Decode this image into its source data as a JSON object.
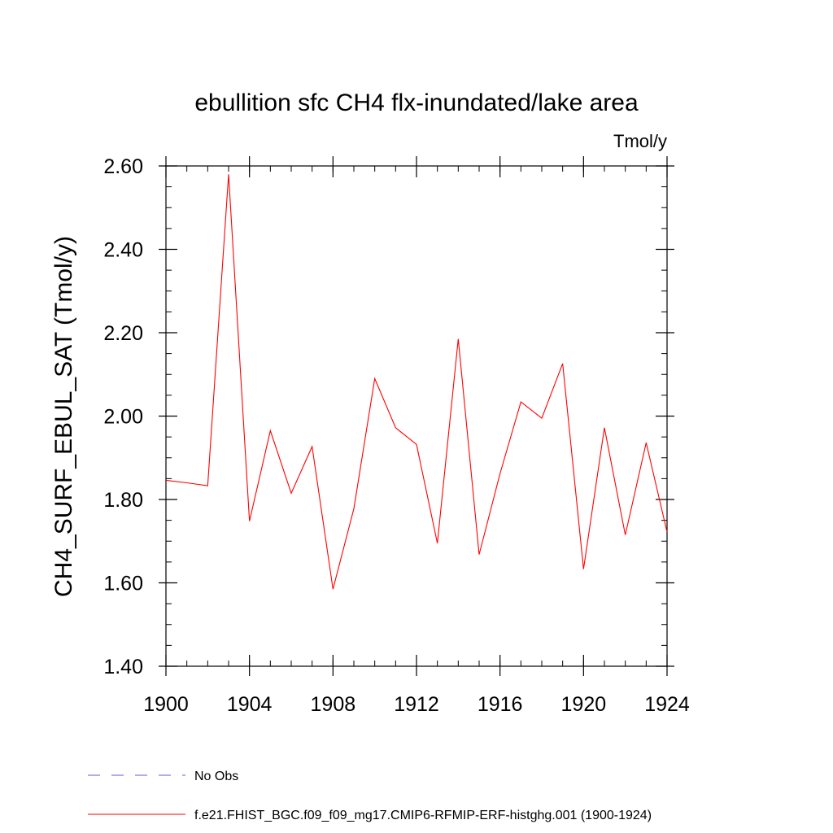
{
  "chart_data": {
    "type": "line",
    "title": "ebullition sfc CH4 flx-inundated/lake area",
    "units_label": "Tmol/y",
    "ylabel": "CH4_SURF_EBUL_SAT  (Tmol/y)",
    "xlabel": "",
    "xlim": [
      1900,
      1924
    ],
    "ylim": [
      1.4,
      2.6
    ],
    "xticks": [
      1900,
      1904,
      1908,
      1912,
      1916,
      1920,
      1924
    ],
    "xtick_labels": [
      "1900",
      "1904",
      "1908",
      "1912",
      "1916",
      "1920",
      "1924"
    ],
    "yticks": [
      1.4,
      1.6,
      1.8,
      2.0,
      2.2,
      2.4,
      2.6
    ],
    "ytick_labels": [
      "1.40",
      "1.60",
      "1.80",
      "2.00",
      "2.20",
      "2.40",
      "2.60"
    ],
    "grid": false,
    "series": [
      {
        "name": "f.e21.FHIST_BGC.f09_f09_mg17.CMIP6-RFMIP-ERF-histghg.001 (1900-1924)",
        "color": "#ff0000",
        "style": "solid",
        "x": [
          1900,
          1901,
          1902,
          1903,
          1904,
          1905,
          1906,
          1907,
          1908,
          1909,
          1910,
          1911,
          1912,
          1913,
          1914,
          1915,
          1916,
          1917,
          1918,
          1919,
          1920,
          1921,
          1922,
          1923,
          1924
        ],
        "values": [
          1.846,
          1.84,
          1.833,
          2.58,
          1.748,
          1.965,
          1.815,
          1.927,
          1.585,
          1.778,
          2.09,
          1.972,
          1.932,
          1.695,
          2.185,
          1.668,
          1.862,
          2.034,
          1.995,
          2.126,
          1.633,
          1.972,
          1.715,
          1.936,
          1.722
        ]
      }
    ],
    "legend": [
      {
        "label": "No Obs",
        "color": "#6a5acd",
        "style": "dashed"
      },
      {
        "label": "f.e21.FHIST_BGC.f09_f09_mg17.CMIP6-RFMIP-ERF-histghg.001 (1900-1924)",
        "color": "#ff0000",
        "style": "solid"
      }
    ],
    "legend_position": "bottom-left"
  }
}
